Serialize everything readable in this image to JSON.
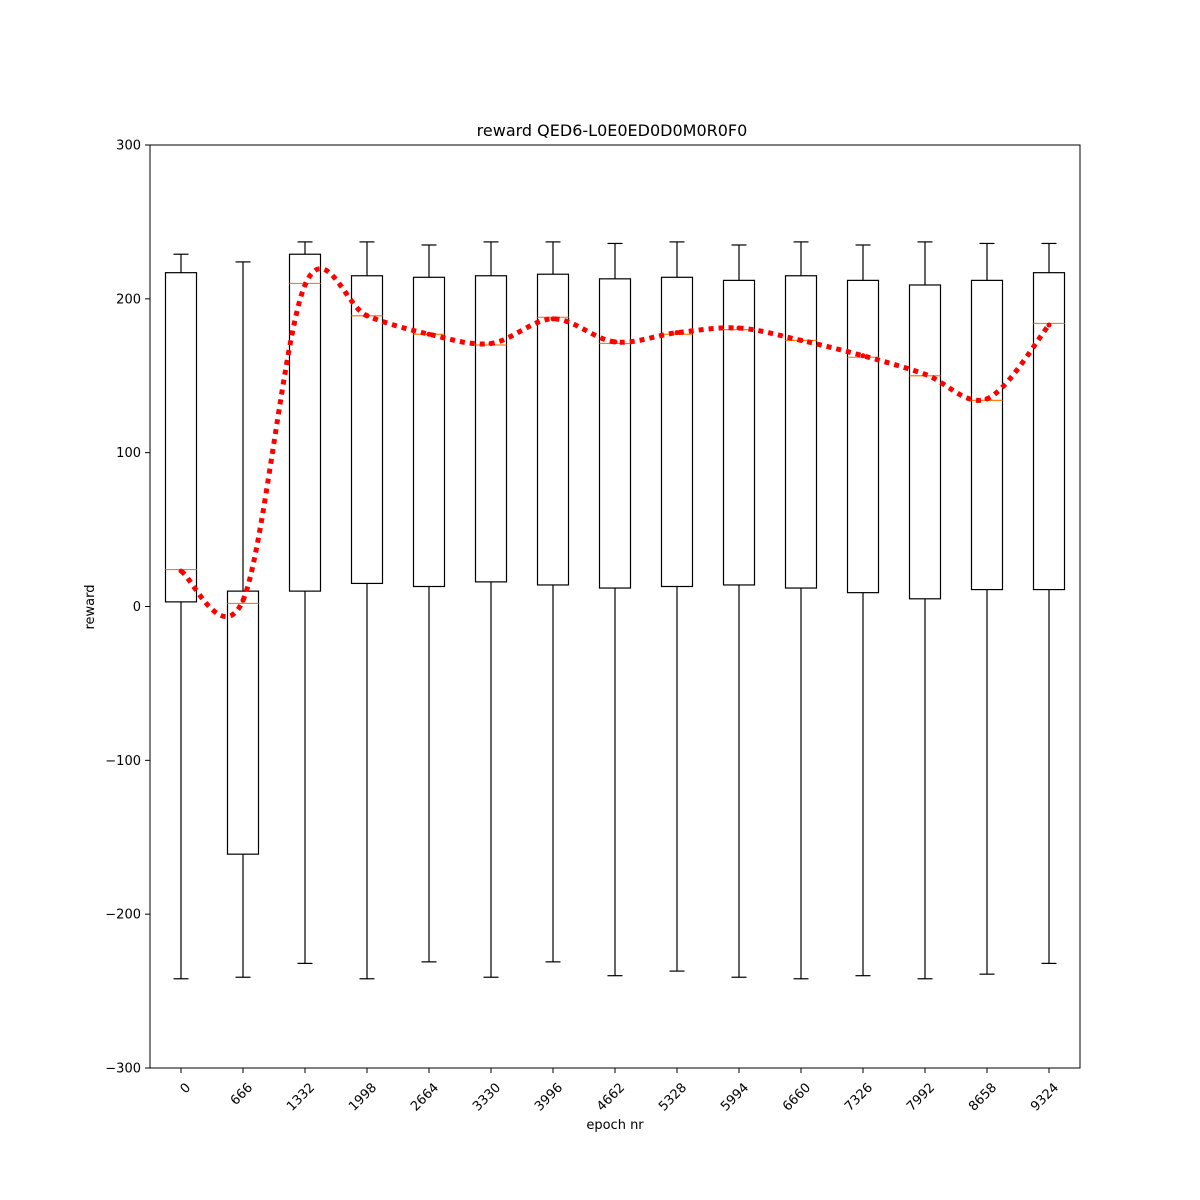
{
  "chart_data": {
    "type": "box",
    "title": "reward QED6-L0E0ED0D0M0R0F0",
    "xlabel": "epoch nr",
    "ylabel": "reward",
    "ylim": [
      -300,
      300
    ],
    "yticks": [
      -300,
      -200,
      -100,
      0,
      100,
      200,
      300
    ],
    "ytick_labels": [
      "−300",
      "−200",
      "−100",
      "0",
      "100",
      "200",
      "300"
    ],
    "categories": [
      "0",
      "666",
      "1332",
      "1998",
      "2664",
      "3330",
      "3996",
      "4662",
      "5328",
      "5994",
      "6660",
      "7326",
      "7992",
      "8658",
      "9324"
    ],
    "boxes": [
      {
        "whislo": -242,
        "q1": 3,
        "med": 24,
        "q3": 217,
        "whishi": 229
      },
      {
        "whislo": -241,
        "q1": -161,
        "med": 2,
        "q3": 10,
        "whishi": 224
      },
      {
        "whislo": -232,
        "q1": 10,
        "med": 210,
        "q3": 229,
        "whishi": 237
      },
      {
        "whislo": -242,
        "q1": 15,
        "med": 189,
        "q3": 215,
        "whishi": 237
      },
      {
        "whislo": -231,
        "q1": 13,
        "med": 177,
        "q3": 214,
        "whishi": 235
      },
      {
        "whislo": -241,
        "q1": 16,
        "med": 170,
        "q3": 215,
        "whishi": 237
      },
      {
        "whislo": -231,
        "q1": 14,
        "med": 188,
        "q3": 216,
        "whishi": 237
      },
      {
        "whislo": -240,
        "q1": 12,
        "med": 171,
        "q3": 213,
        "whishi": 236
      },
      {
        "whislo": -237,
        "q1": 13,
        "med": 177,
        "q3": 214,
        "whishi": 237
      },
      {
        "whislo": -241,
        "q1": 14,
        "med": 180,
        "q3": 212,
        "whishi": 235
      },
      {
        "whislo": -242,
        "q1": 12,
        "med": 173,
        "q3": 215,
        "whishi": 237
      },
      {
        "whislo": -240,
        "q1": 9,
        "med": 162,
        "q3": 212,
        "whishi": 235
      },
      {
        "whislo": -242,
        "q1": 5,
        "med": 150,
        "q3": 209,
        "whishi": 237
      },
      {
        "whislo": -239,
        "q1": 11,
        "med": 134,
        "q3": 212,
        "whishi": 236
      },
      {
        "whislo": -232,
        "q1": 11,
        "med": 184,
        "q3": 217,
        "whishi": 236
      }
    ],
    "trend_line": [
      23,
      4,
      209,
      189,
      177,
      171,
      187,
      172,
      178,
      181,
      173,
      163,
      151,
      135,
      183
    ],
    "colors": {
      "box": "#000000",
      "median": "#ff7f0e",
      "trend": "#ff0000"
    },
    "grid": false,
    "legend": "none"
  }
}
